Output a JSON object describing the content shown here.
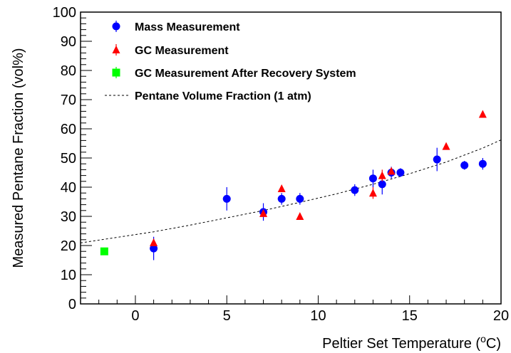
{
  "chart_data": {
    "type": "scatter",
    "title": "",
    "xlabel_main": "Peltier Set Temperature (",
    "xlabel_super": "o",
    "xlabel_end": "C)",
    "ylabel": "Measured Pentane Fraction (vol%)",
    "xlim": [
      -3,
      20
    ],
    "ylim": [
      0,
      100
    ],
    "x_ticks": [
      0,
      5,
      10,
      15,
      20
    ],
    "y_ticks": [
      0,
      10,
      20,
      30,
      40,
      50,
      60,
      70,
      80,
      90,
      100
    ],
    "grid": false,
    "legend_position": "top-left",
    "series": [
      {
        "name": "Mass Measurement",
        "marker": "circle",
        "color": "#0000ff",
        "points": [
          {
            "x": 1,
            "y": 19,
            "err": 4
          },
          {
            "x": 5,
            "y": 36,
            "err": 4
          },
          {
            "x": 7,
            "y": 31.5,
            "err": 3
          },
          {
            "x": 8,
            "y": 36,
            "err": 2
          },
          {
            "x": 9,
            "y": 36,
            "err": 2
          },
          {
            "x": 12,
            "y": 39,
            "err": 2
          },
          {
            "x": 13,
            "y": 43,
            "err": 3
          },
          {
            "x": 13.5,
            "y": 41,
            "err": 3.5
          },
          {
            "x": 14,
            "y": 45,
            "err": 2
          },
          {
            "x": 14.5,
            "y": 45,
            "err": 1.5
          },
          {
            "x": 16.5,
            "y": 49.5,
            "err": 4
          },
          {
            "x": 18,
            "y": 47.5,
            "err": 1.5
          },
          {
            "x": 19,
            "y": 48,
            "err": 2
          }
        ]
      },
      {
        "name": "GC Measurement",
        "marker": "triangle",
        "color": "#ff0000",
        "points": [
          {
            "x": 1,
            "y": 21,
            "err": 1
          },
          {
            "x": 7,
            "y": 31,
            "err": 1
          },
          {
            "x": 8,
            "y": 39.5,
            "err": 1
          },
          {
            "x": 9,
            "y": 30,
            "err": 1
          },
          {
            "x": 13,
            "y": 38,
            "err": 2
          },
          {
            "x": 13.5,
            "y": 44,
            "err": 2
          },
          {
            "x": 14,
            "y": 45.5,
            "err": 1
          },
          {
            "x": 17,
            "y": 54,
            "err": 0.5
          },
          {
            "x": 19,
            "y": 65,
            "err": 0.5
          }
        ]
      },
      {
        "name": "GC Measurement After Recovery System",
        "marker": "square",
        "color": "#00ff00",
        "points": [
          {
            "x": -1.7,
            "y": 18,
            "err": 0
          }
        ]
      }
    ],
    "curve": {
      "name": "Pentane Volume Fraction (1 atm)",
      "style": "dashed",
      "color": "#000000",
      "x": [
        -3,
        -1,
        1,
        3,
        5,
        7,
        9,
        11,
        13,
        15,
        17,
        19,
        20
      ],
      "y": [
        20.9,
        22.8,
        24.7,
        27.0,
        29.5,
        32.0,
        34.8,
        37.7,
        41.0,
        44.6,
        48.6,
        53.4,
        56.2
      ]
    }
  }
}
